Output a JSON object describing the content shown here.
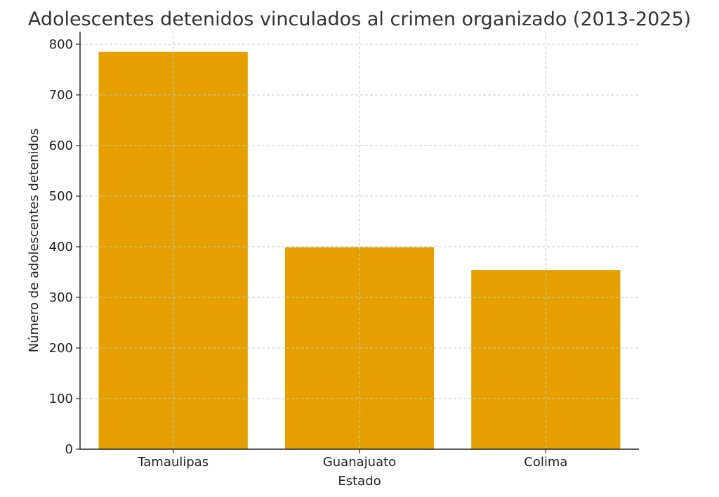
{
  "chart_data": {
    "type": "bar",
    "title": "Adolescentes detenidos vinculados al crimen organizado (2013-2025)",
    "xlabel": "Estado",
    "ylabel": "Número de adolescentes detenidos",
    "categories": [
      "Tamaulipas",
      "Guanajuato",
      "Colima"
    ],
    "values": [
      785,
      399,
      354
    ],
    "ylim": [
      0,
      825
    ],
    "yticks": [
      0,
      100,
      200,
      300,
      400,
      500,
      600,
      700,
      800
    ],
    "grid": true,
    "bar_color": "#E5A000"
  }
}
